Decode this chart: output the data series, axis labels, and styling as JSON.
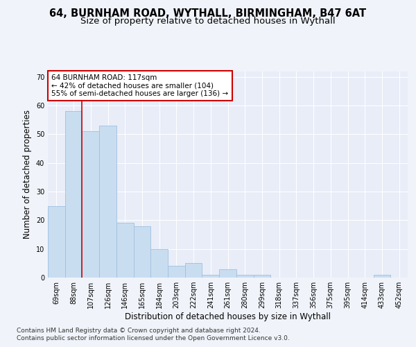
{
  "title1": "64, BURNHAM ROAD, WYTHALL, BIRMINGHAM, B47 6AT",
  "title2": "Size of property relative to detached houses in Wythall",
  "xlabel": "Distribution of detached houses by size in Wythall",
  "ylabel": "Number of detached properties",
  "categories": [
    "69sqm",
    "88sqm",
    "107sqm",
    "126sqm",
    "146sqm",
    "165sqm",
    "184sqm",
    "203sqm",
    "222sqm",
    "241sqm",
    "261sqm",
    "280sqm",
    "299sqm",
    "318sqm",
    "337sqm",
    "356sqm",
    "375sqm",
    "395sqm",
    "414sqm",
    "433sqm",
    "452sqm"
  ],
  "values": [
    25,
    58,
    51,
    53,
    19,
    18,
    10,
    4,
    5,
    1,
    3,
    1,
    1,
    0,
    0,
    0,
    0,
    0,
    0,
    1,
    0
  ],
  "bar_color": "#c9ddf0",
  "bar_edge_color": "#a0c0e0",
  "bg_color": "#e8edf8",
  "grid_color": "#ffffff",
  "vline_x": 1.5,
  "vline_color": "#cc0000",
  "annotation_line1": "64 BURNHAM ROAD: 117sqm",
  "annotation_line2": "← 42% of detached houses are smaller (104)",
  "annotation_line3": "55% of semi-detached houses are larger (136) →",
  "ylim": [
    0,
    72
  ],
  "yticks": [
    0,
    10,
    20,
    30,
    40,
    50,
    60,
    70
  ],
  "footnote1": "Contains HM Land Registry data © Crown copyright and database right 2024.",
  "footnote2": "Contains public sector information licensed under the Open Government Licence v3.0.",
  "title1_fontsize": 10.5,
  "title2_fontsize": 9.5,
  "xlabel_fontsize": 8.5,
  "ylabel_fontsize": 8.5,
  "tick_fontsize": 7,
  "annotation_fontsize": 7.5,
  "footnote_fontsize": 6.5
}
